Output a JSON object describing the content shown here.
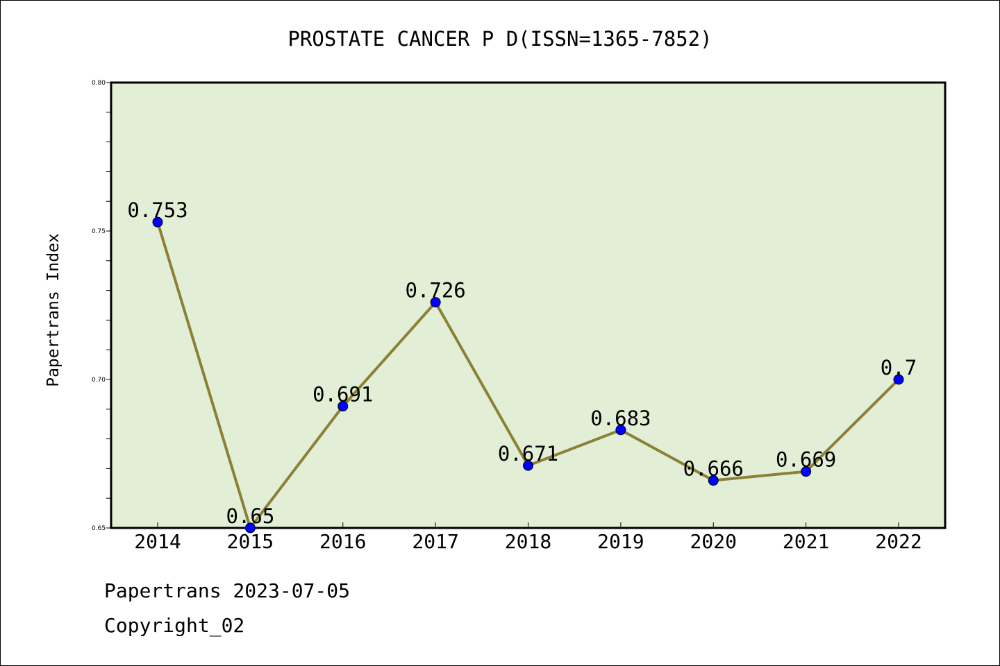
{
  "chart_data": {
    "type": "line",
    "title": "PROSTATE CANCER P D(ISSN=1365-7852)",
    "xlabel": "",
    "ylabel": "Papertrans Index",
    "categories": [
      "2014",
      "2015",
      "2016",
      "2017",
      "2018",
      "2019",
      "2020",
      "2021",
      "2022"
    ],
    "series": [
      {
        "values": [
          0.753,
          0.65,
          0.691,
          0.726,
          0.671,
          0.683,
          0.666,
          0.669,
          0.7
        ],
        "data_labels": [
          "0.753",
          "0.65",
          "0.691",
          "0.726",
          "0.671",
          "0.683",
          "0.666",
          "0.669",
          "0.7"
        ]
      }
    ],
    "ylim": [
      0.65,
      0.8
    ],
    "y_ticks": [
      "0.65",
      "0.70",
      "0.75",
      "0.80"
    ],
    "grid": false,
    "colors": {
      "plot_background": "#e2efd6",
      "line": "#8b8035",
      "marker": "#0000ff"
    }
  },
  "footer": {
    "source": "Papertrans 2023-07-05",
    "copyright": "Copyright_02"
  }
}
